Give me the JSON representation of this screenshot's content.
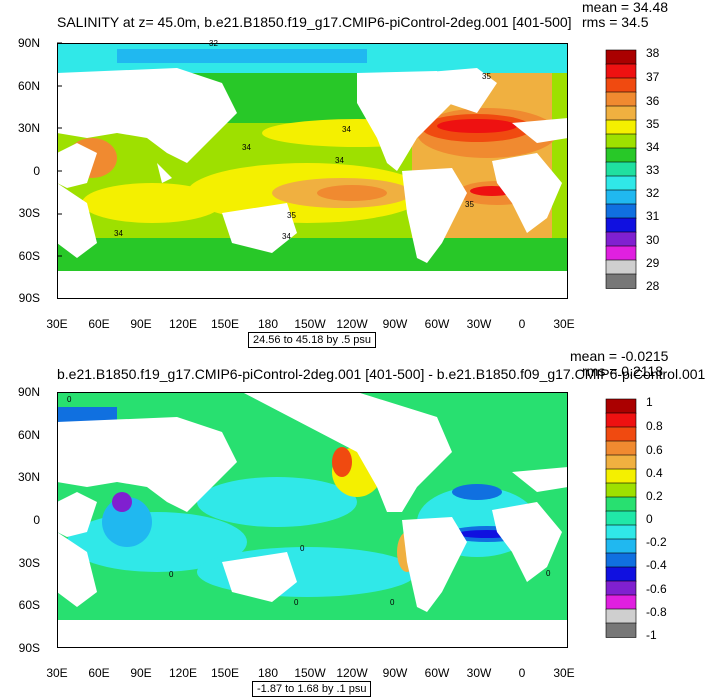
{
  "panel_top": {
    "title": "SALINITY at z=  45.0m, b.e21.B1850.f19_g17.CMIP6-piControl-2deg.001 [401-500]",
    "stats": {
      "mean": "mean = 34.48",
      "rms": "rms = 34.5"
    },
    "lat_labels": [
      "90N",
      "60N",
      "30N",
      "0",
      "30S",
      "60S",
      "90S"
    ],
    "lon_labels": [
      "30E",
      "60E",
      "90E",
      "120E",
      "150E",
      "180",
      "150W",
      "120W",
      "90W",
      "60W",
      "30W",
      "0",
      "30E"
    ],
    "range_label": "24.56 to 45.18 by .5 psu",
    "colorbar": {
      "labels": [
        "38",
        "37",
        "36",
        "35",
        "34",
        "33",
        "32",
        "31",
        "30",
        "29",
        "28"
      ],
      "colors": [
        "#aa0000",
        "#ee1111",
        "#f04a10",
        "#f08a30",
        "#f0b040",
        "#f4f000",
        "#9ee000",
        "#28c828",
        "#20e0a0",
        "#30e8e8",
        "#20b8f0",
        "#1070e0",
        "#1010e0",
        "#8020d0",
        "#e020e0",
        "#cfcfcf",
        "#777777"
      ]
    },
    "contour_labels": [
      "32",
      "35",
      "34",
      "34",
      "34",
      "35",
      "35",
      "34",
      "34"
    ]
  },
  "panel_bottom": {
    "title": "b.e21.B1850.f19_g17.CMIP6-piControl-2deg.001 [401-500] - b.e21.B1850.f09_g17.CMIP6-piControl.001",
    "stats": {
      "mean": "mean = -0.0215",
      "rms": "rms = 0.2118"
    },
    "lat_labels": [
      "90N",
      "60N",
      "30N",
      "0",
      "30S",
      "60S",
      "90S"
    ],
    "lon_labels": [
      "30E",
      "60E",
      "90E",
      "120E",
      "150E",
      "180",
      "150W",
      "120W",
      "90W",
      "60W",
      "30W",
      "0",
      "30E"
    ],
    "range_label": "-1.87 to 1.68 by .1 psu",
    "colorbar": {
      "labels": [
        "1",
        "0.8",
        "0.6",
        "0.4",
        "0.2",
        "0",
        "-0.2",
        "-0.4",
        "-0.6",
        "-0.8",
        "-1"
      ],
      "colors": [
        "#aa0000",
        "#ee1111",
        "#f04a10",
        "#f08a30",
        "#f0b040",
        "#f4f000",
        "#9ee000",
        "#28e070",
        "#20e8a8",
        "#30e8e8",
        "#20b8f0",
        "#1070e0",
        "#1010e0",
        "#8020d0",
        "#e020e0",
        "#cfcfcf",
        "#777777"
      ]
    },
    "contour_labels": [
      "0",
      "0",
      "0",
      "0",
      "0",
      "0"
    ]
  }
}
